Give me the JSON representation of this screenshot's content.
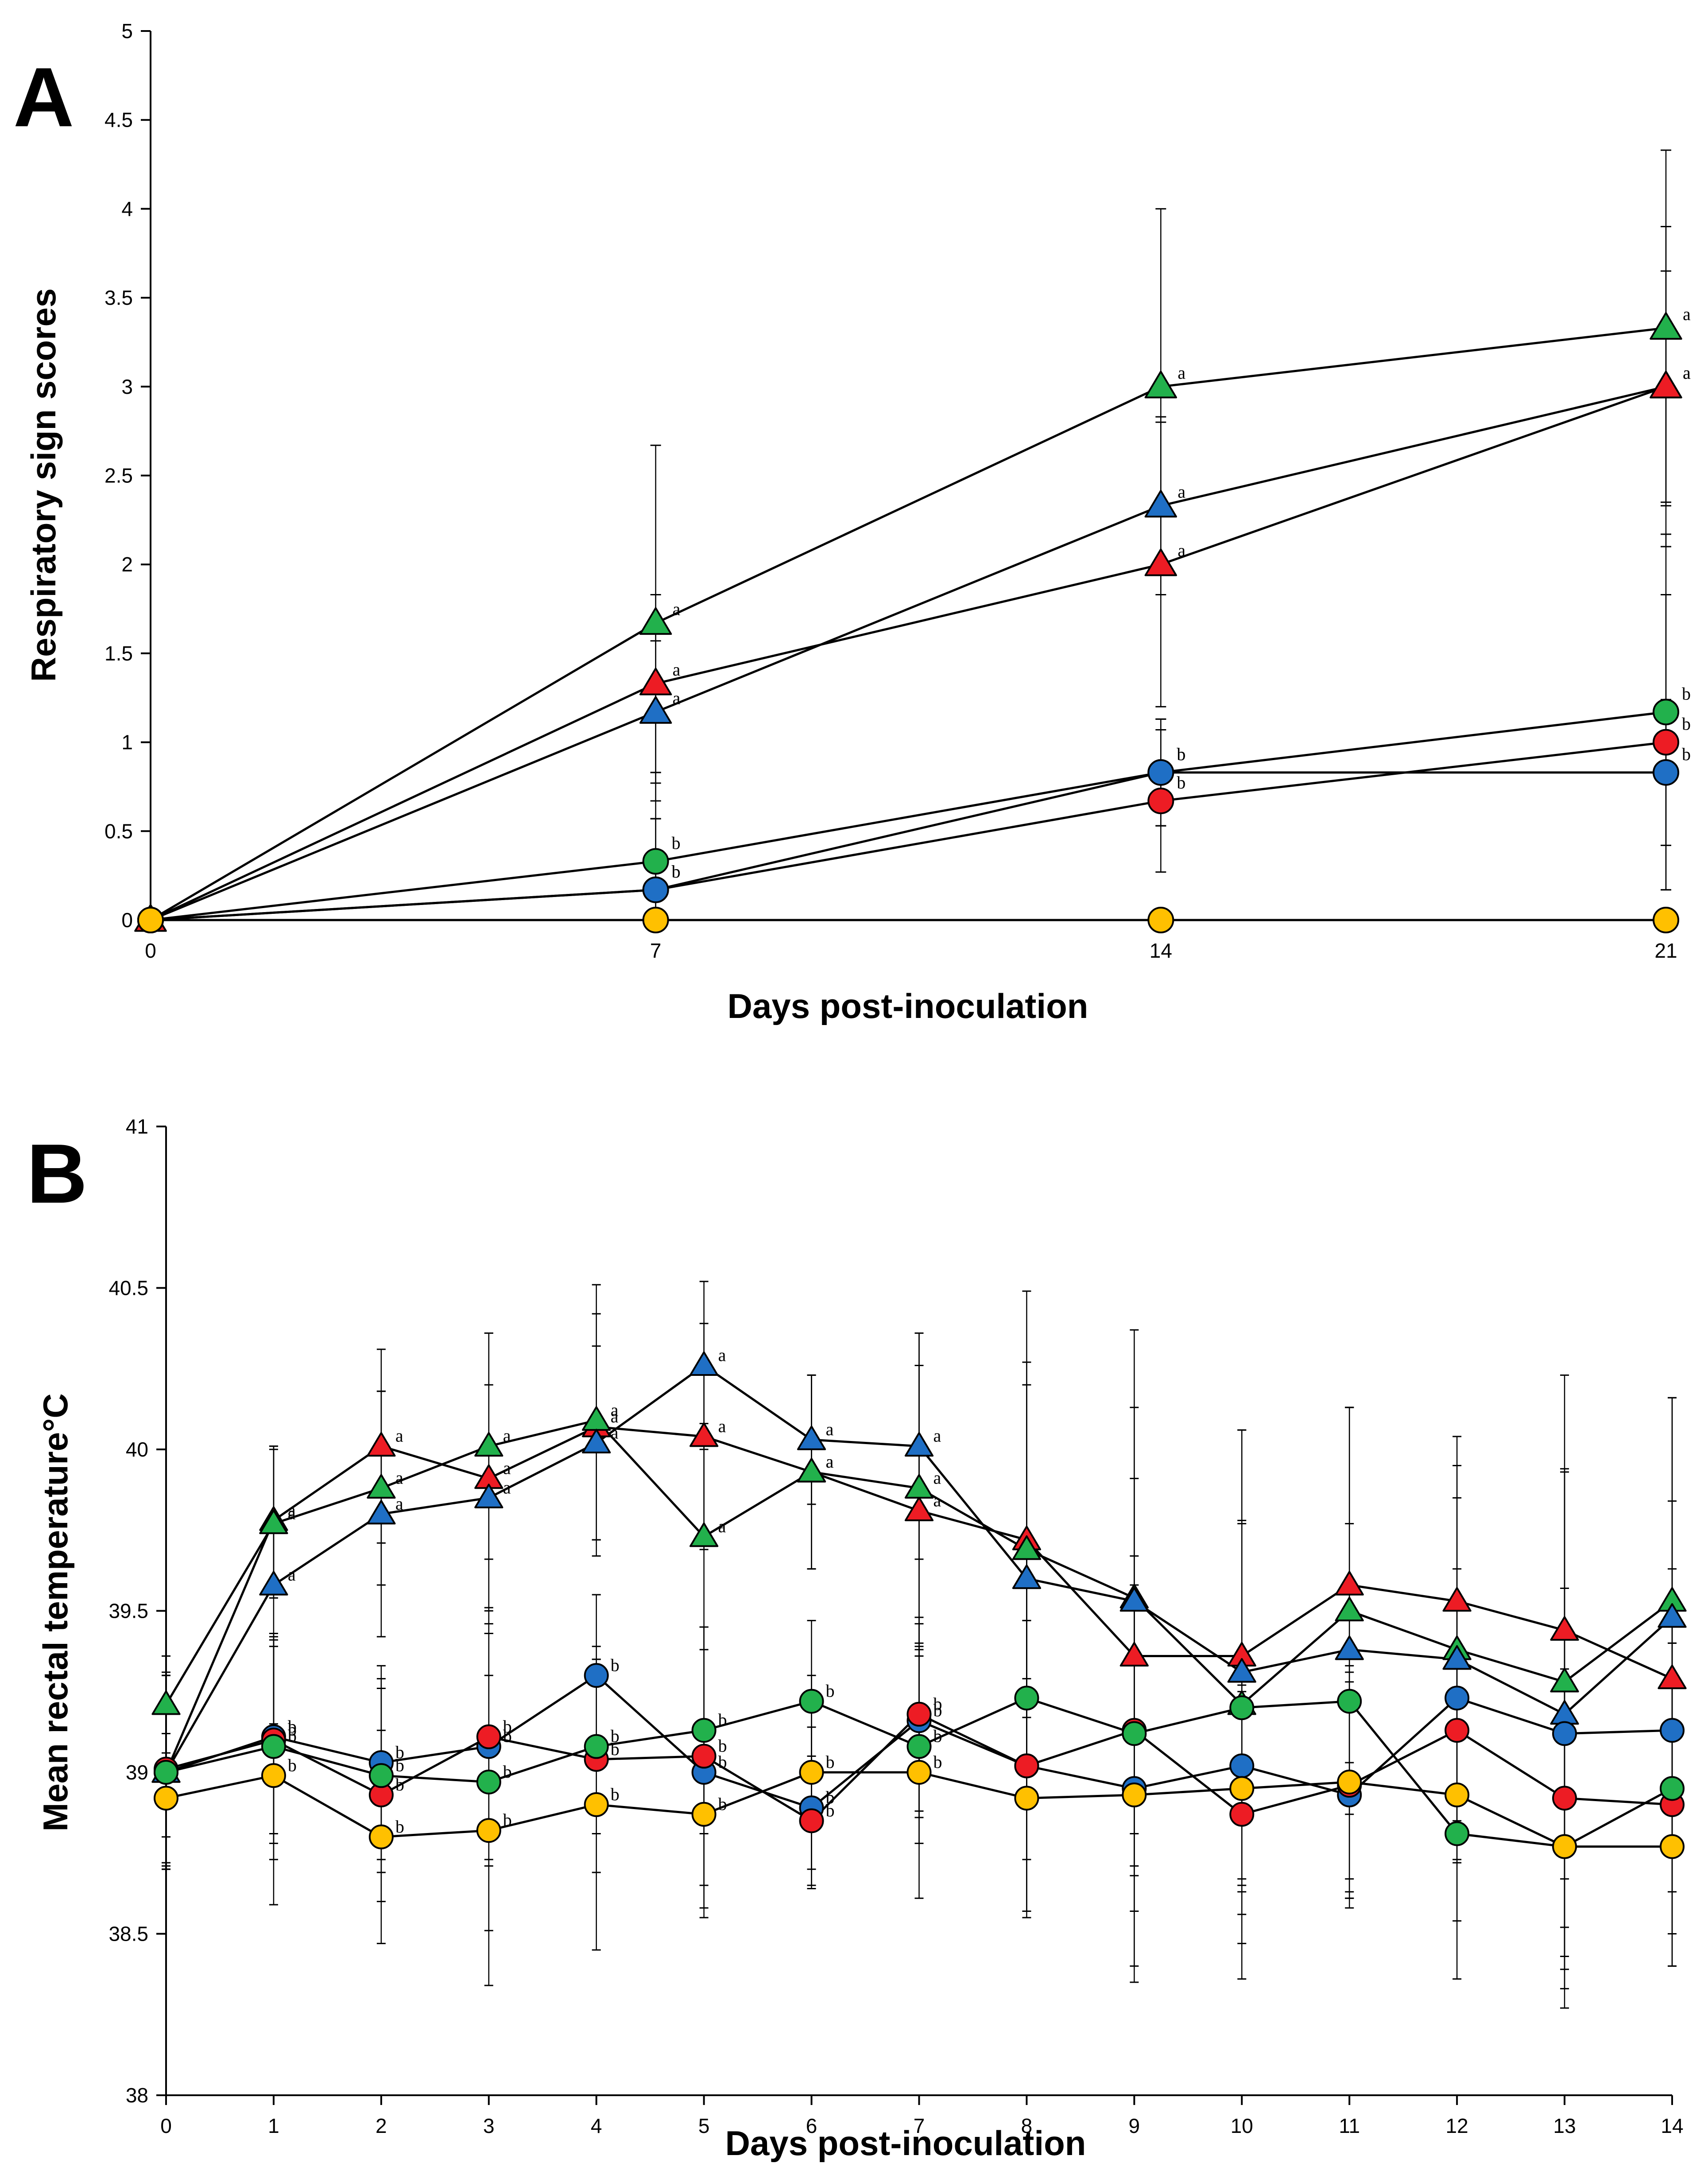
{
  "chart_data": [
    {
      "panel_label": "A",
      "type": "line",
      "xlabel": "Days post-inoculation",
      "ylabel": "Respiratory  sign scores",
      "xlim": [
        0,
        21
      ],
      "ylim": [
        0,
        5
      ],
      "x": [
        0,
        7,
        14,
        21
      ],
      "xticks": [
        0,
        7,
        14,
        21
      ],
      "xtick_labels": [
        "0",
        "7",
        "14",
        "21"
      ],
      "yticks": [
        0,
        0.5,
        1,
        1.5,
        2,
        2.5,
        3,
        3.5,
        4,
        4.5,
        5
      ],
      "ytick_labels": [
        "0",
        "0.5",
        "1",
        "1.5",
        "2",
        "2.5",
        "3",
        "3.5",
        "4",
        "4.5",
        "5"
      ],
      "series": [
        {
          "name": "green-triangle",
          "marker": "triangle",
          "color": "#22b14c",
          "values": [
            0,
            1.67,
            3.0,
            3.33
          ],
          "errors": [
            0,
            1.0,
            1.0,
            1.0
          ],
          "sig": [
            "",
            "a",
            "a",
            "a"
          ]
        },
        {
          "name": "blue-triangle",
          "marker": "triangle",
          "color": "#1f6fc5",
          "values": [
            0,
            1.17,
            2.33,
            3.0
          ],
          "errors": [
            0,
            0.4,
            0.5,
            0.9
          ],
          "sig": [
            "",
            "a",
            "a",
            "a"
          ]
        },
        {
          "name": "red-triangle",
          "marker": "triangle",
          "color": "#ed1c24",
          "values": [
            0,
            1.33,
            2.0,
            3.0
          ],
          "errors": [
            0,
            0.5,
            0.8,
            0.65
          ],
          "sig": [
            "",
            "a",
            "a",
            "a"
          ]
        },
        {
          "name": "green-circle",
          "marker": "circle",
          "color": "#22b14c",
          "values": [
            0,
            0.33,
            0.83,
            1.17
          ],
          "errors": [
            0,
            0.5,
            0.3,
            1.0
          ],
          "sig": [
            "",
            "b",
            "b",
            "b"
          ]
        },
        {
          "name": "red-circle",
          "marker": "circle",
          "color": "#ed1c24",
          "values": [
            0,
            0.17,
            0.67,
            1.0
          ],
          "errors": [
            0,
            0.4,
            0.4,
            0.83
          ],
          "sig": [
            "",
            "b",
            "b",
            "b"
          ]
        },
        {
          "name": "blue-circle",
          "marker": "circle",
          "color": "#1f6fc5",
          "values": [
            0,
            0.17,
            0.83,
            0.83
          ],
          "errors": [
            0,
            0.4,
            0.3,
            0.41
          ],
          "sig": [
            "",
            "b",
            "b",
            "b"
          ]
        },
        {
          "name": "yellow-circle",
          "marker": "circle",
          "color": "#ffc000",
          "values": [
            0,
            0,
            0,
            0
          ],
          "errors": [
            0,
            0,
            0,
            0
          ],
          "sig": [
            "",
            "",
            "",
            ""
          ]
        }
      ]
    },
    {
      "panel_label": "B",
      "type": "line",
      "xlabel": "Days post-inoculation",
      "ylabel": "Mean rectal temperature°C",
      "xlim": [
        0,
        14
      ],
      "ylim": [
        38,
        41
      ],
      "x": [
        0,
        1,
        2,
        3,
        4,
        5,
        6,
        7,
        8,
        9,
        10,
        11,
        12,
        13,
        14
      ],
      "xticks": [
        0,
        1,
        2,
        3,
        4,
        5,
        6,
        7,
        8,
        9,
        10,
        11,
        12,
        13,
        14
      ],
      "xtick_labels": [
        "0",
        "1",
        "2",
        "3",
        "4",
        "5",
        "6",
        "7",
        "8",
        "9",
        "10",
        "11",
        "12",
        "13",
        "14"
      ],
      "yticks": [
        38,
        38.5,
        39,
        39.5,
        40,
        40.5,
        41
      ],
      "ytick_labels": [
        "38",
        "38.5",
        "39",
        "39.5",
        "40",
        "40.5",
        "41"
      ],
      "series": [
        {
          "name": "red-triangle",
          "marker": "triangle",
          "color": "#ed1c24",
          "values": [
            39.0,
            39.78,
            40.01,
            39.91,
            40.07,
            40.04,
            39.93,
            39.81,
            39.72,
            39.36,
            39.36,
            39.58,
            39.53,
            39.44,
            39.29
          ],
          "errors": [
            0.3,
            0.23,
            0.3,
            0.45,
            0.35,
            0.35,
            0.3,
            0.45,
            0.55,
            0.55,
            0.42,
            0.55,
            0.42,
            0.5,
            0.55
          ],
          "sig": [
            "",
            "a",
            "a",
            "a",
            "a",
            "a",
            "a",
            "a",
            "",
            "",
            "",
            "",
            "",
            "",
            ""
          ]
        },
        {
          "name": "green-triangle",
          "marker": "triangle",
          "color": "#22b14c",
          "values": [
            39.21,
            39.77,
            39.88,
            40.01,
            40.09,
            39.73,
            39.93,
            39.88,
            39.69,
            39.54,
            39.21,
            39.5,
            39.38,
            39.28,
            39.53
          ],
          "errors": [
            0.15,
            0.23,
            0.3,
            0.35,
            0.42,
            0.35,
            0.3,
            0.48,
            0.8,
            0.83,
            0.85,
            0.63,
            0.66,
            0.95,
            0.63
          ],
          "sig": [
            "",
            "a",
            "a",
            "a",
            "a",
            "a",
            "a",
            "a",
            "",
            "",
            "",
            "",
            "",
            "",
            ""
          ]
        },
        {
          "name": "blue-triangle",
          "marker": "triangle",
          "color": "#1f6fc5",
          "values": [
            39.0,
            39.58,
            39.8,
            39.85,
            40.02,
            40.26,
            40.03,
            40.01,
            39.6,
            39.53,
            39.31,
            39.38,
            39.35,
            39.18,
            39.48
          ],
          "errors": [
            0.3,
            0.43,
            0.38,
            0.35,
            0.3,
            0.26,
            0.2,
            0.35,
            0.6,
            0.6,
            0.75,
            0.75,
            0.5,
            0.75,
            0.68
          ],
          "sig": [
            "",
            "a",
            "a",
            "a",
            "a",
            "a",
            "a",
            "a",
            "",
            "",
            "",
            "",
            "",
            "",
            ""
          ]
        },
        {
          "name": "blue-circle",
          "marker": "circle",
          "color": "#1f6fc5",
          "values": [
            39.0,
            39.11,
            39.03,
            39.08,
            39.3,
            39.0,
            38.89,
            39.16,
            39.02,
            38.95,
            39.02,
            38.93,
            39.23,
            39.12,
            39.13
          ],
          "errors": [
            0.2,
            0.3,
            0.3,
            0.35,
            0.25,
            0.45,
            0.25,
            0.3,
            0.45,
            0.55,
            0.35,
            0.35,
            0.4,
            0.45,
            0.5
          ],
          "sig": [
            "",
            "b",
            "b",
            "b",
            "b",
            "b",
            "b",
            "b",
            "",
            "",
            "",
            "",
            "",
            "",
            ""
          ]
        },
        {
          "name": "red-circle",
          "marker": "circle",
          "color": "#ed1c24",
          "values": [
            39.01,
            39.1,
            38.93,
            39.11,
            39.04,
            39.05,
            38.85,
            39.18,
            39.02,
            39.13,
            38.87,
            38.96,
            39.13,
            38.92,
            38.9
          ],
          "errors": [
            0.3,
            0.32,
            0.33,
            0.4,
            0.35,
            0.4,
            0.2,
            0.3,
            0.45,
            0.45,
            0.4,
            0.35,
            0.4,
            0.4,
            0.5
          ],
          "sig": [
            "",
            "b",
            "b",
            "b",
            "b",
            "b",
            "b",
            "b",
            "",
            "",
            "",
            "",
            "",
            "",
            ""
          ]
        },
        {
          "name": "green-circle",
          "marker": "circle",
          "color": "#22b14c",
          "values": [
            39.0,
            39.08,
            38.99,
            38.97,
            39.08,
            39.13,
            39.22,
            39.08,
            39.23,
            39.12,
            39.2,
            39.22,
            38.81,
            38.77,
            38.95
          ],
          "errors": [
            0.3,
            0.35,
            0.3,
            0.46,
            0.27,
            0.32,
            0.25,
            0.3,
            0.5,
            0.55,
            0.57,
            0.55,
            0.45,
            0.5,
            0.45
          ],
          "sig": [
            "",
            "b",
            "b",
            "b",
            "b",
            "b",
            "b",
            "b",
            "",
            "",
            "",
            "",
            "",
            "",
            ""
          ]
        },
        {
          "name": "yellow-circle",
          "marker": "circle",
          "color": "#ffc000",
          "values": [
            38.92,
            38.99,
            38.8,
            38.82,
            38.9,
            38.87,
            39.0,
            39.0,
            38.92,
            38.93,
            38.95,
            38.97,
            38.93,
            38.77,
            38.77
          ],
          "errors": [
            0.2,
            0.4,
            0.33,
            0.48,
            0.45,
            0.29,
            0.3,
            0.39,
            0.37,
            0.58,
            0.3,
            0.36,
            0.39,
            0.38,
            0.37
          ],
          "sig": [
            "",
            "b",
            "b",
            "b",
            "b",
            "b",
            "b",
            "b",
            "",
            "",
            "",
            "",
            "",
            "",
            ""
          ]
        }
      ]
    }
  ]
}
